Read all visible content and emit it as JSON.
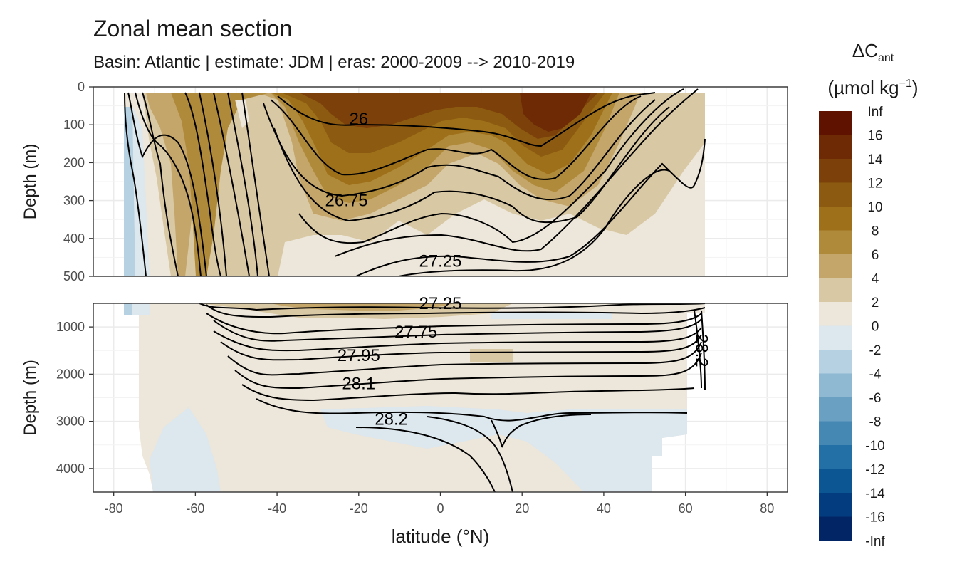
{
  "title": "Zonal mean section",
  "subtitle": "Basin: Atlantic | estimate: JDM  | eras: 2000-2009 --> 2010-2019",
  "chart_data": {
    "type": "heatmap",
    "x_label": "latitude (°N)",
    "y_label": "Depth (m)",
    "x_ticks": [
      -80,
      -60,
      -40,
      -20,
      0,
      20,
      40,
      60,
      80
    ],
    "x_range": [
      -85,
      85
    ],
    "panels": [
      {
        "name": "upper",
        "y_range": [
          0,
          500
        ],
        "y_ticks": [
          0,
          100,
          200,
          300,
          400,
          500
        ],
        "y_reversed": true
      },
      {
        "name": "lower",
        "y_range": [
          500,
          4500
        ],
        "y_ticks": [
          1000,
          2000,
          3000,
          4000
        ],
        "y_reversed": true
      }
    ],
    "legend": {
      "title_main": "ΔC",
      "title_sub": "ant",
      "unit_main": "(µmol kg",
      "unit_sup": "−1",
      "unit_end": ")",
      "labels": [
        "Inf",
        "16",
        "14",
        "12",
        "10",
        "8",
        "6",
        "4",
        "2",
        "0",
        "-2",
        "-4",
        "-6",
        "-8",
        "-10",
        "-12",
        "-14",
        "-16",
        "-Inf"
      ],
      "colors": [
        "#601200",
        "#6d2a04",
        "#7c410a",
        "#8c5a10",
        "#9d7019",
        "#b08a3b",
        "#c4a66b",
        "#d9c8a4",
        "#ede6da",
        "#dce7ee",
        "#b5d1e2",
        "#8fb8d2",
        "#6aa1c3",
        "#4588b4",
        "#2270a5",
        "#0b5693",
        "#043d7f",
        "#022566",
        "#01154f"
      ]
    },
    "isopycnal_labels": [
      {
        "panel": "upper",
        "text": "26",
        "lat": -20,
        "depth": 85
      },
      {
        "panel": "upper",
        "text": "26.75",
        "lat": -23,
        "depth": 300
      },
      {
        "panel": "upper",
        "text": "27.25",
        "lat": 0,
        "depth": 460
      },
      {
        "panel": "lower",
        "text": "27.25",
        "lat": 0,
        "depth": 500
      },
      {
        "panel": "lower",
        "text": "27.75",
        "lat": -6,
        "depth": 1100
      },
      {
        "panel": "lower",
        "text": "27.95",
        "lat": -20,
        "depth": 1600
      },
      {
        "panel": "lower",
        "text": "28.1",
        "lat": -20,
        "depth": 2200
      },
      {
        "panel": "lower",
        "text": "28.2",
        "lat": -12,
        "depth": 2950
      },
      {
        "panel": "lower",
        "text": "28.2",
        "lat": 64,
        "depth": 1500
      }
    ]
  }
}
